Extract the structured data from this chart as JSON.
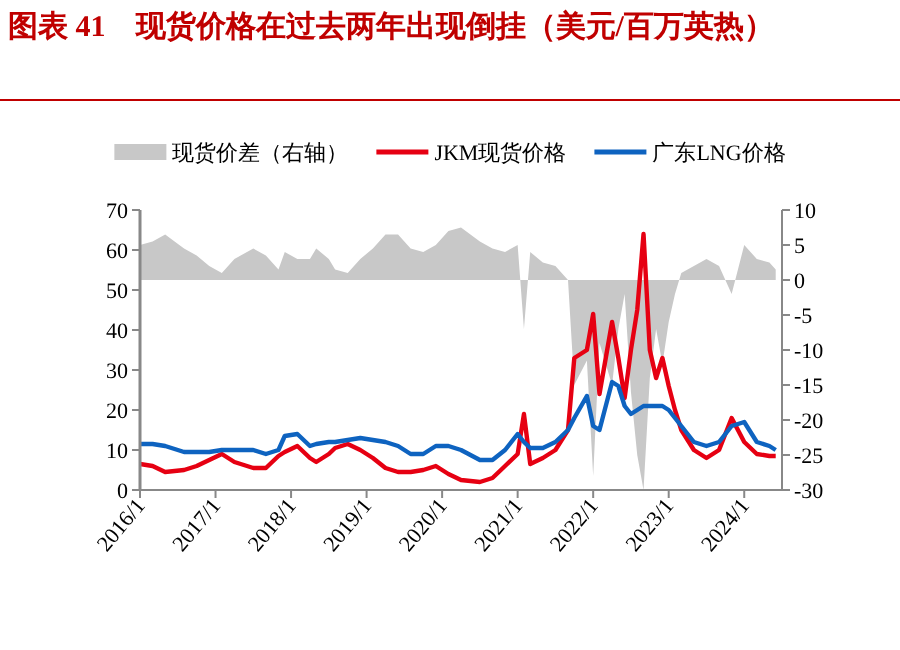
{
  "chart_data": {
    "type": "line",
    "title": "图表 41　现货价格在过去两年出现倒挂（美元/百万英热）",
    "x": [
      "2016-01",
      "2016-03",
      "2016-05",
      "2016-08",
      "2016-10",
      "2016-12",
      "2017-02",
      "2017-04",
      "2017-07",
      "2017-09",
      "2017-11",
      "2017-12",
      "2018-02",
      "2018-04",
      "2018-05",
      "2018-07",
      "2018-08",
      "2018-10",
      "2018-12",
      "2019-02",
      "2019-04",
      "2019-06",
      "2019-08",
      "2019-10",
      "2019-12",
      "2020-02",
      "2020-04",
      "2020-07",
      "2020-09",
      "2020-11",
      "2021-01",
      "2021-02",
      "2021-03",
      "2021-05",
      "2021-07",
      "2021-09",
      "2021-10",
      "2021-12",
      "2022-01",
      "2022-02",
      "2022-04",
      "2022-05",
      "2022-06",
      "2022-07",
      "2022-08",
      "2022-09",
      "2022-10",
      "2022-11",
      "2022-12",
      "2023-01",
      "2023-02",
      "2023-03",
      "2023-05",
      "2023-07",
      "2023-09",
      "2023-11",
      "2024-01",
      "2024-03",
      "2024-05",
      "2024-06"
    ],
    "series": [
      {
        "name": "现货价差（右轴）",
        "type": "area",
        "axis": "y2",
        "color": "#c8c8c8",
        "values": [
          5,
          5.5,
          6.5,
          4.5,
          3.5,
          2,
          1,
          3,
          4.5,
          3.5,
          1.5,
          4,
          3,
          3,
          4.5,
          3,
          1.5,
          1,
          3,
          4.5,
          6.5,
          6.5,
          4.5,
          4,
          5,
          7,
          7.5,
          5.5,
          4.5,
          4,
          5,
          -7,
          4,
          2.5,
          2,
          0,
          -15,
          -11.5,
          -28,
          -9,
          -15,
          -7,
          -2,
          -16,
          -25,
          -30,
          -14,
          -7,
          -12,
          -6,
          -2,
          1,
          2,
          3,
          2,
          -2,
          5,
          3,
          2.5,
          1.5
        ]
      },
      {
        "name": "JKM现货价格",
        "type": "line",
        "color": "#e60012",
        "values": [
          6.5,
          6,
          4.5,
          5,
          6,
          7.5,
          9,
          7,
          5.5,
          5.5,
          8.5,
          9.5,
          11,
          8,
          7,
          9,
          10.5,
          11.5,
          10,
          8,
          5.5,
          4.5,
          4.5,
          5,
          6,
          4,
          2.5,
          2,
          3,
          6,
          9,
          19,
          6.5,
          8,
          10,
          15,
          33,
          35,
          44,
          24,
          42,
          33,
          23,
          35,
          45,
          64,
          35,
          28,
          33,
          26,
          20,
          15,
          10,
          8,
          10,
          18,
          12,
          9,
          8.5,
          8.5
        ]
      },
      {
        "name": "广东LNG价格",
        "type": "line",
        "color": "#0e63c0",
        "values": [
          11.5,
          11.5,
          11,
          9.5,
          9.5,
          9.5,
          10,
          10,
          10,
          9,
          10,
          13.5,
          14,
          11,
          11.5,
          12,
          12,
          12.5,
          13,
          12.5,
          12,
          11,
          9,
          9,
          11,
          11,
          10,
          7.5,
          7.5,
          10,
          14,
          12,
          10.5,
          10.5,
          12,
          15,
          18,
          23.5,
          16,
          15,
          27,
          26,
          21,
          19,
          20,
          21,
          21,
          21,
          21,
          20,
          18,
          16,
          12,
          11,
          12,
          16,
          17,
          12,
          11,
          10
        ]
      }
    ],
    "xlim": [
      "2016-01",
      "2024-07"
    ],
    "xticks": [
      {
        "value": "2016-01",
        "label": "2016/1"
      },
      {
        "value": "2017-01",
        "label": "2017/1"
      },
      {
        "value": "2018-01",
        "label": "2018/1"
      },
      {
        "value": "2019-01",
        "label": "2019/1"
      },
      {
        "value": "2020-01",
        "label": "2020/1"
      },
      {
        "value": "2021-01",
        "label": "2021/1"
      },
      {
        "value": "2022-01",
        "label": "2022/1"
      },
      {
        "value": "2023-01",
        "label": "2023/1"
      },
      {
        "value": "2024-01",
        "label": "2024/1"
      }
    ],
    "ylim": [
      0,
      70
    ],
    "yticks": [
      0,
      10,
      20,
      30,
      40,
      50,
      60,
      70
    ],
    "y2lim": [
      -30,
      10
    ],
    "y2ticks": [
      -30,
      -25,
      -20,
      -15,
      -10,
      -5,
      0,
      5,
      10
    ],
    "legend": "top",
    "grid": false
  }
}
